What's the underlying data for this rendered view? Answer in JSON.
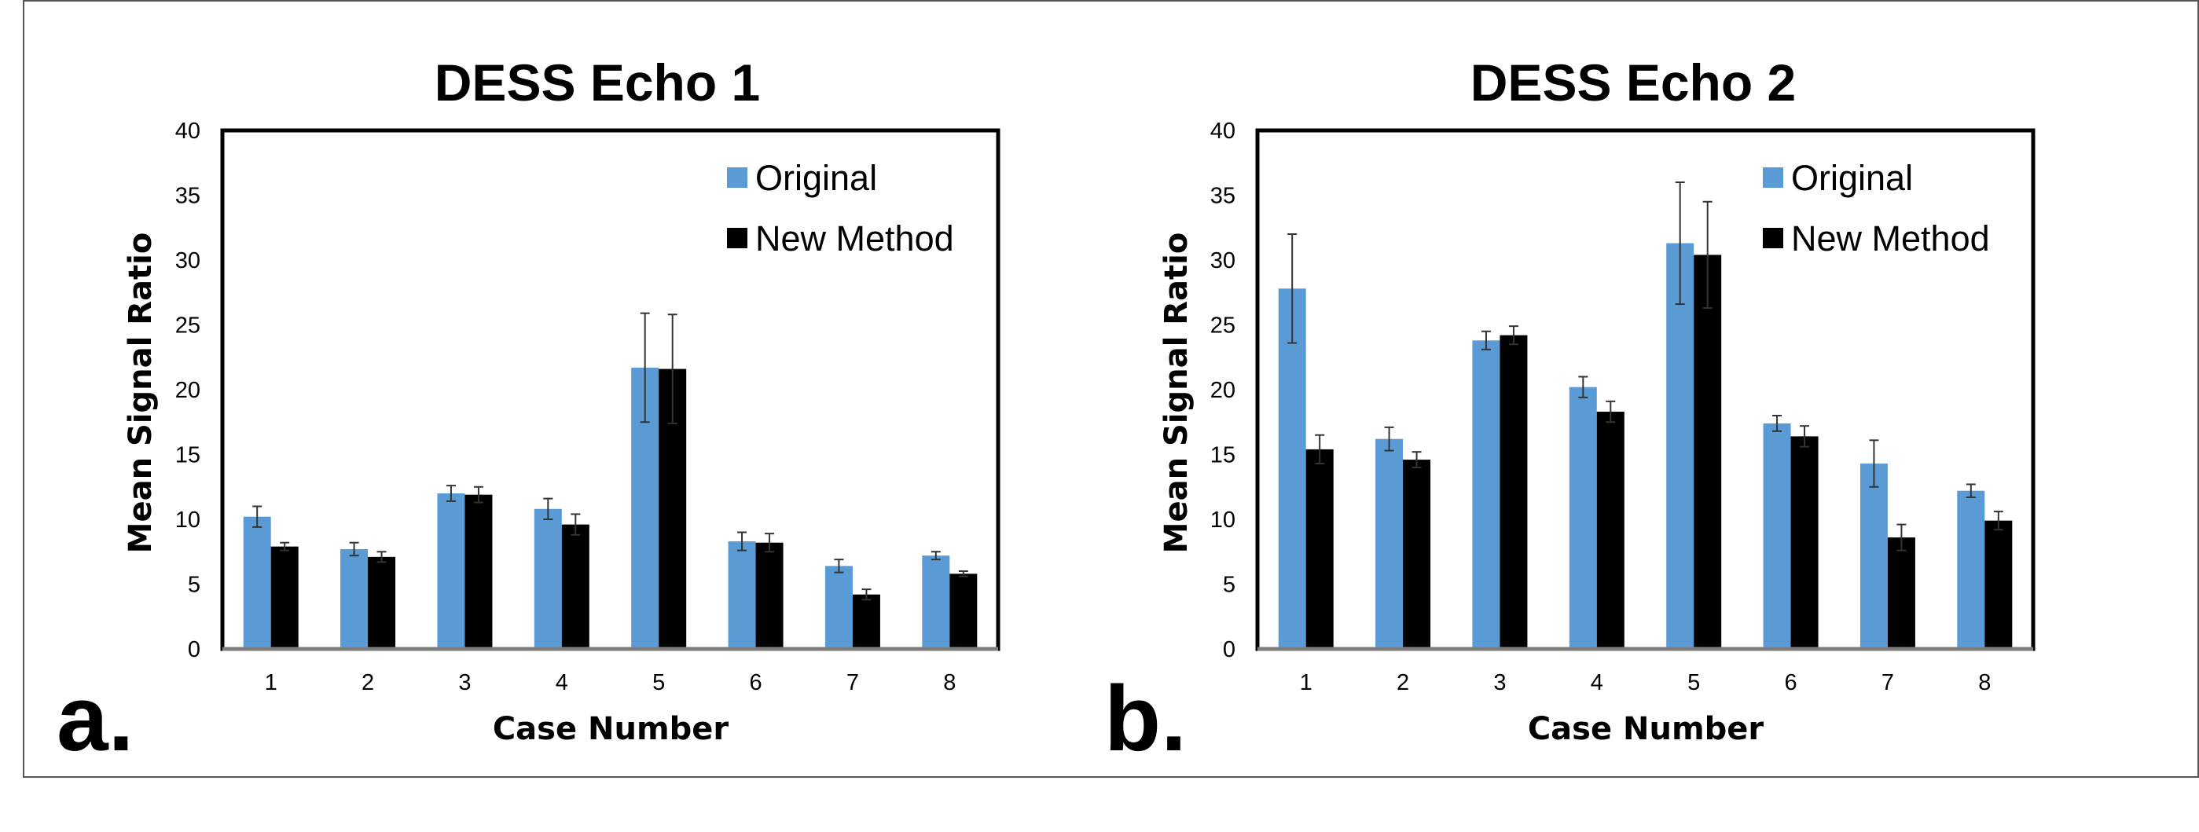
{
  "colors": {
    "original": "#5b9bd5",
    "new_method": "#000000",
    "error_bar": "#333333",
    "axis": "#000000"
  },
  "chart_data": [
    {
      "type": "bar",
      "panel_label": "a.",
      "title": "DESS Echo 1",
      "xlabel": "Case Number",
      "ylabel": "Mean Signal Ratio",
      "ylim": [
        0,
        40
      ],
      "yticks": [
        "0",
        "5",
        "10",
        "15",
        "20",
        "25",
        "30",
        "35",
        "40"
      ],
      "categories": [
        "1",
        "2",
        "3",
        "4",
        "5",
        "6",
        "7",
        "8"
      ],
      "legend_position": "top-right",
      "series": [
        {
          "name": "Original",
          "values": [
            10.2,
            7.7,
            12.0,
            10.8,
            21.7,
            8.3,
            6.4,
            7.2
          ],
          "errors": [
            0.8,
            0.5,
            0.6,
            0.8,
            4.2,
            0.7,
            0.5,
            0.3
          ]
        },
        {
          "name": "New Method",
          "values": [
            7.9,
            7.1,
            11.9,
            9.6,
            21.6,
            8.2,
            4.2,
            5.8
          ],
          "errors": [
            0.3,
            0.4,
            0.6,
            0.8,
            4.2,
            0.7,
            0.4,
            0.2
          ]
        }
      ]
    },
    {
      "type": "bar",
      "panel_label": "b.",
      "title": "DESS Echo 2",
      "xlabel": "Case Number",
      "ylabel": "Mean Signal Ratio",
      "ylim": [
        0,
        40
      ],
      "yticks": [
        "0",
        "5",
        "10",
        "15",
        "20",
        "25",
        "30",
        "35",
        "40"
      ],
      "categories": [
        "1",
        "2",
        "3",
        "4",
        "5",
        "6",
        "7",
        "8"
      ],
      "legend_position": "top-right",
      "series": [
        {
          "name": "Original",
          "values": [
            27.8,
            16.2,
            23.8,
            20.2,
            31.3,
            17.4,
            14.3,
            12.2
          ],
          "errors": [
            4.2,
            0.9,
            0.7,
            0.8,
            4.7,
            0.6,
            1.8,
            0.5
          ]
        },
        {
          "name": "New Method",
          "values": [
            15.4,
            14.6,
            24.2,
            18.3,
            30.4,
            16.4,
            8.6,
            9.9
          ],
          "errors": [
            1.1,
            0.6,
            0.7,
            0.8,
            4.1,
            0.8,
            1.0,
            0.7
          ]
        }
      ]
    }
  ]
}
